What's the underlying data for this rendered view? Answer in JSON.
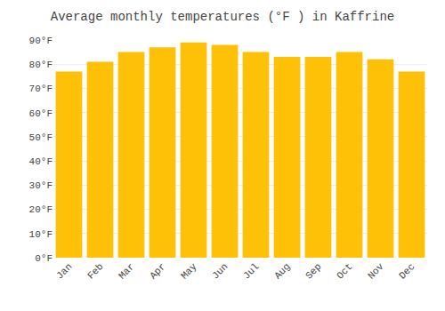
{
  "chart_data": {
    "type": "bar",
    "title": "Average monthly temperatures (°F ) in Kaffrine",
    "categories": [
      "Jan",
      "Feb",
      "Mar",
      "Apr",
      "May",
      "Jun",
      "Jul",
      "Aug",
      "Sep",
      "Oct",
      "Nov",
      "Dec"
    ],
    "values": [
      77,
      81,
      85,
      87,
      89,
      88,
      85,
      83,
      83,
      85,
      82,
      77
    ],
    "color": "#FFC107",
    "ylim": [
      0,
      90
    ],
    "yticks": [
      {
        "value": 0,
        "label": "0°F"
      },
      {
        "value": 10,
        "label": "10°F"
      },
      {
        "value": 20,
        "label": "20°F"
      },
      {
        "value": 30,
        "label": "30°F"
      },
      {
        "value": 40,
        "label": "40°F"
      },
      {
        "value": 50,
        "label": "50°F"
      },
      {
        "value": 60,
        "label": "60°F"
      },
      {
        "value": 70,
        "label": "70°F"
      },
      {
        "value": 80,
        "label": "80°F"
      },
      {
        "value": 90,
        "label": "90°F"
      }
    ],
    "grid": true
  }
}
